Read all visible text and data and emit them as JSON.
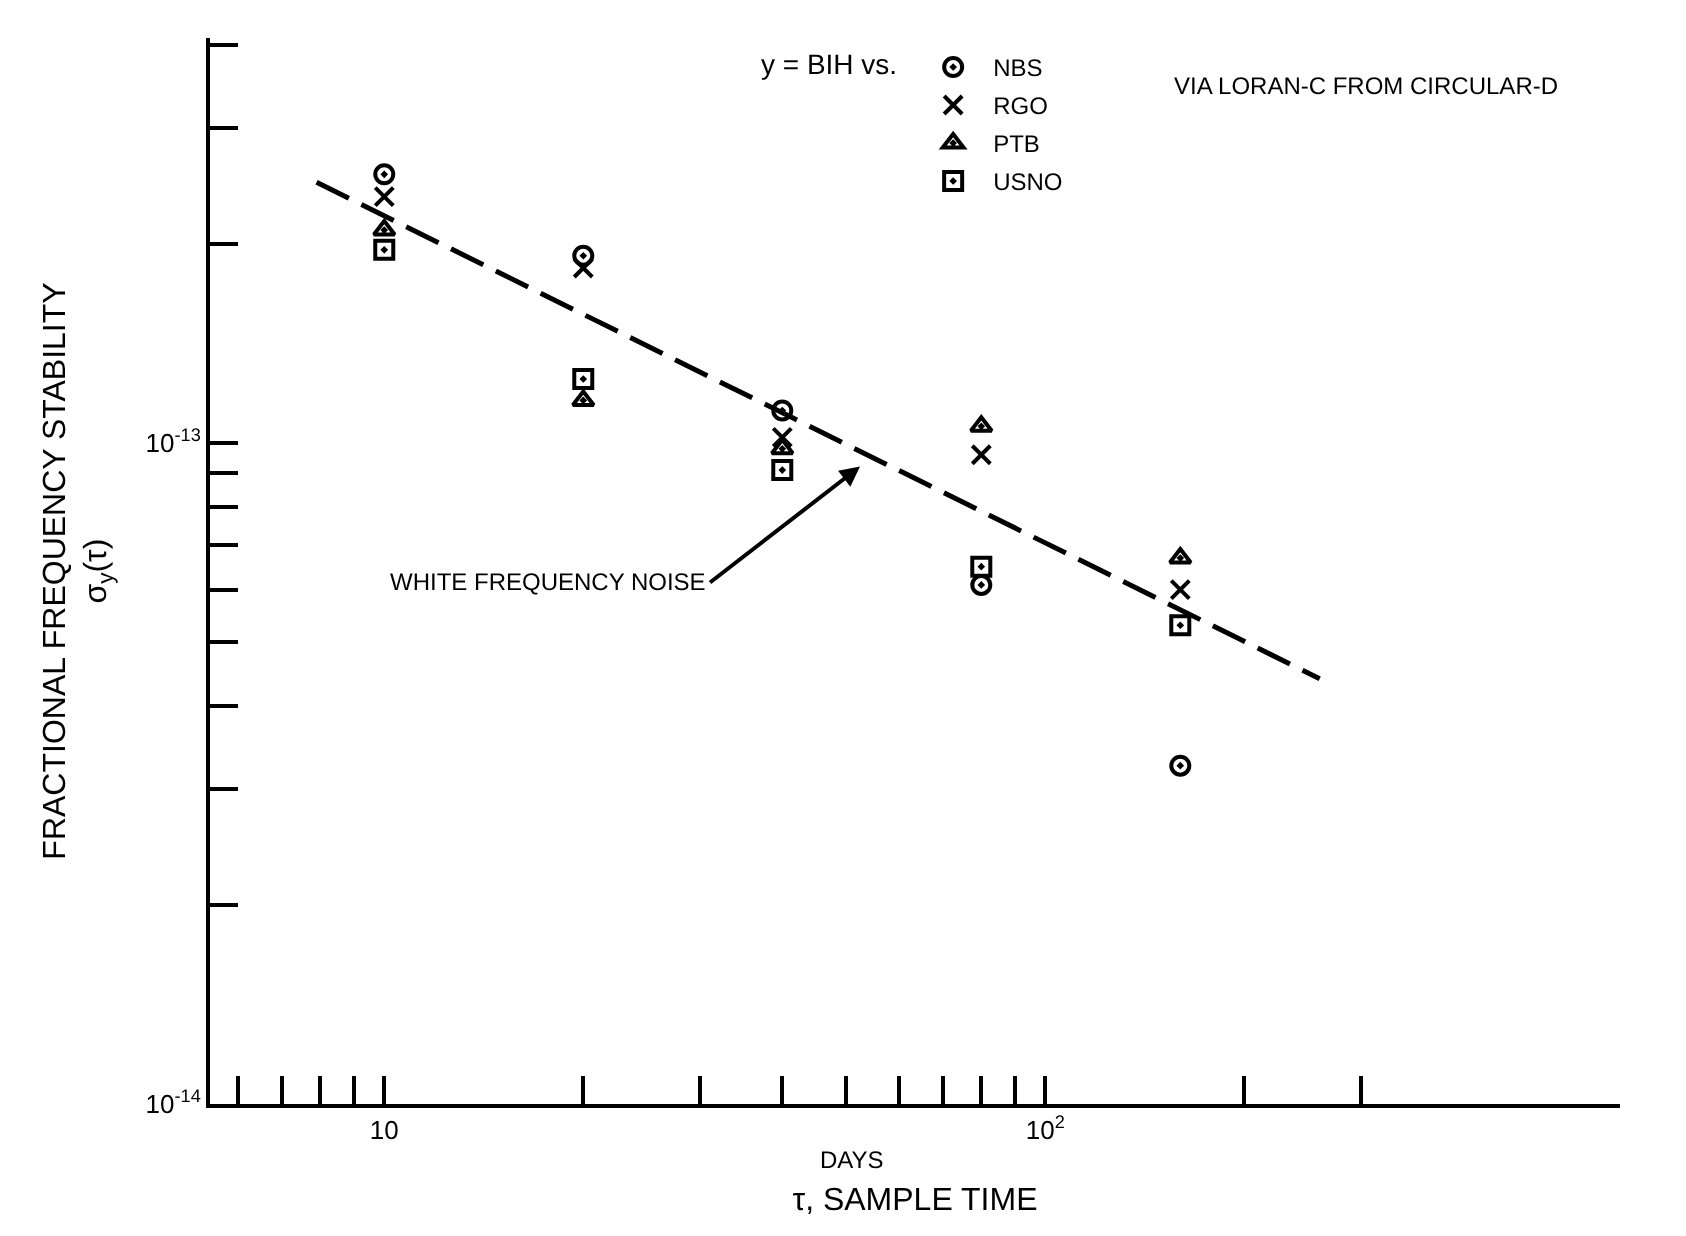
{
  "chart_data": {
    "type": "scatter",
    "xlabel": "τ, SAMPLE TIME",
    "ylabel": "FRACTIONAL FREQUENCY STABILITY\nσ$_{y}$(τ)",
    "legend_title": "y = BIH vs.",
    "annotations": [
      "VIA LORAN-C FROM CIRCULAR-D",
      "DAYS",
      "WHITE FREQUENCY NOISE"
    ],
    "log": "xy",
    "legend": "top",
    "xlim": [
      5.45,
      740
    ],
    "ylim": [
      1e-14,
      4.1e-13
    ],
    "xticks": [
      {
        "value": 6,
        "label": null
      },
      {
        "value": 7,
        "label": null
      },
      {
        "value": 8,
        "label": null
      },
      {
        "value": 9,
        "label": null
      },
      10,
      {
        "value": 20,
        "label": null
      },
      {
        "value": 30,
        "label": null
      },
      {
        "value": 40,
        "label": null
      },
      {
        "value": 50,
        "label": null
      },
      {
        "value": 60,
        "label": null
      },
      {
        "value": 70,
        "label": null
      },
      {
        "value": 80,
        "label": null
      },
      {
        "value": 90,
        "label": null
      },
      {
        "value": 100,
        "label": "10$^{2}$"
      },
      {
        "value": 200,
        "label": null
      },
      {
        "value": 300,
        "label": null
      }
    ],
    "yticks": [
      {
        "value": 1e-14,
        "label": "10$^{-14}$"
      },
      {
        "value": 2e-14,
        "label": null
      },
      {
        "value": 3e-14,
        "label": null
      },
      {
        "value": 4e-14,
        "label": null
      },
      {
        "value": 5e-14,
        "label": null
      },
      {
        "value": 6e-14,
        "label": null
      },
      {
        "value": 7e-14,
        "label": null
      },
      {
        "value": 8e-14,
        "label": null
      },
      {
        "value": 9e-14,
        "label": null
      },
      {
        "value": 1e-13,
        "label": "10$^{-13}$"
      },
      {
        "value": 2e-13,
        "label": null
      },
      {
        "value": 3e-13,
        "label": null
      },
      {
        "value": 4e-13,
        "label": null
      }
    ],
    "x": [
      10,
      20,
      40,
      80,
      160
    ],
    "series": [
      {
        "name": "NBS",
        "color": "#000000",
        "marker": "circle",
        "values": [
          2.55e-13,
          1.92e-13,
          1.12e-13,
          6.1e-14,
          3.25e-14
        ]
      },
      {
        "name": "RGO",
        "color": "#000000",
        "marker": "cross",
        "values": [
          2.36e-13,
          1.84e-13,
          1.02e-13,
          9.6e-14,
          6e-14
        ]
      },
      {
        "name": "PTB",
        "color": "#000000",
        "marker": "triangle",
        "values": [
          2.1e-13,
          1.16e-13,
          9.8e-14,
          1.06e-13,
          6.7e-14
        ]
      },
      {
        "name": "USNO",
        "color": "#000000",
        "marker": "square",
        "values": [
          1.96e-13,
          1.25e-13,
          9.1e-14,
          6.5e-14,
          5.3e-14
        ]
      },
      {
        "type": "line",
        "color": "#000000",
        "line_style": "dashed",
        "marker": "none",
        "x": [
          7.9,
          260
        ],
        "values": [
          2.48e-13,
          4.4e-14
        ]
      }
    ]
  }
}
